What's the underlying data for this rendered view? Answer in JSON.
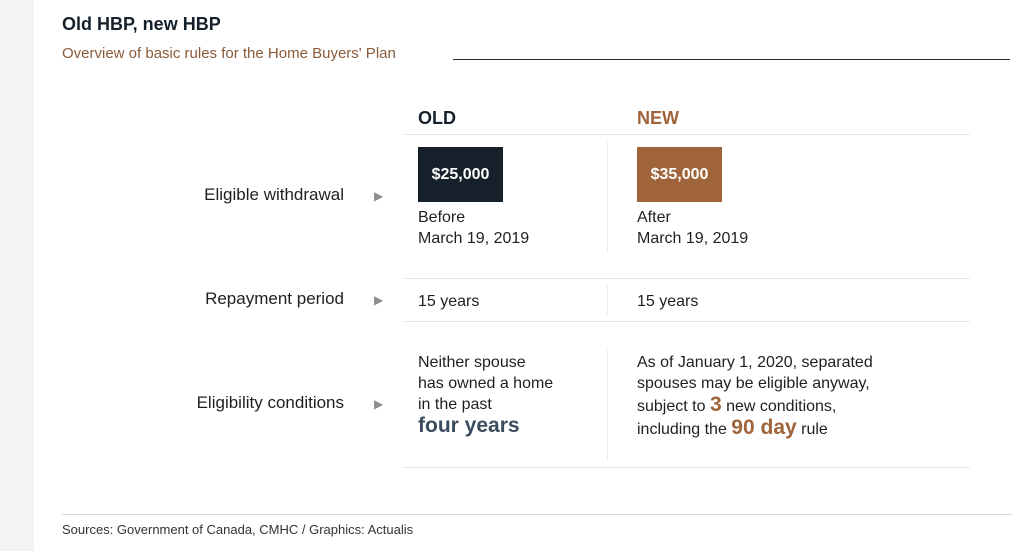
{
  "header": {
    "title": "Old HBP, new HBP",
    "subtitle": "Overview of basic rules for the Home Buyers' Plan"
  },
  "columns": {
    "old": "OLD",
    "new": "NEW"
  },
  "rows": {
    "withdrawal": {
      "label": "Eligible withdrawal",
      "old_amount": "$25,000",
      "old_line1": "Before",
      "old_line2": "March 19, 2019",
      "new_amount": "$35,000",
      "new_line1": "After",
      "new_line2": "March 19, 2019"
    },
    "repayment": {
      "label": "Repayment period",
      "old": "15 years",
      "new": "15 years"
    },
    "conditions": {
      "label": "Eligibility conditions",
      "old_line1": "Neither spouse",
      "old_line2": "has owned a home",
      "old_line3": "in the past",
      "old_emphasis": "four years",
      "new_line1": "As of January 1, 2020, separated",
      "new_line2": "spouses may be eligible anyway,",
      "new_line3_pre": "subject to ",
      "new_line3_num": "3",
      "new_line3_post": " new conditions,",
      "new_line4_pre": "including the ",
      "new_line4_num": "90 day",
      "new_line4_post": " rule"
    }
  },
  "arrow_glyph": "▶",
  "footer": {
    "sources": "Sources: Government of Canada, CMHC  /  Graphics: Actualis"
  },
  "colors": {
    "navy": "#15202b",
    "brown": "#a0643a"
  }
}
